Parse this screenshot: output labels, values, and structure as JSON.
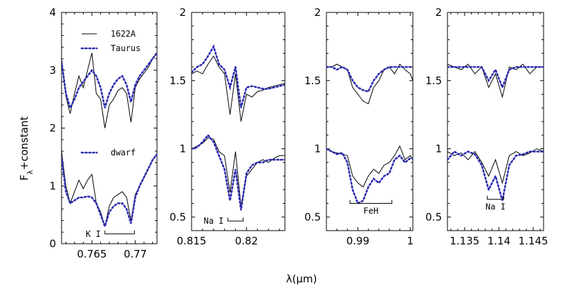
{
  "figure": {
    "ylabel_main": "F",
    "ylabel_sub": "λ",
    "ylabel_rest": "+constant",
    "xlabel": "λ(μm)"
  },
  "legend": {
    "items": [
      {
        "label": "1622A",
        "style": "solid"
      },
      {
        "label": "Taurus",
        "style": "dotted"
      },
      {
        "label": "dwarf",
        "style": "dotted"
      }
    ]
  },
  "colors": {
    "observed": "#000000",
    "template": "#2b2bb0"
  },
  "chart_data": [
    {
      "type": "line",
      "xlim": [
        0.7615,
        0.7725
      ],
      "ylim": [
        0,
        4
      ],
      "xticks": [
        0.765,
        0.77
      ],
      "xtick_labels": [
        "0.765",
        "0.77"
      ],
      "yticks": [
        0,
        1,
        2,
        3,
        4
      ],
      "ytick_labels": [
        "0",
        "1",
        "2",
        "3",
        "4"
      ],
      "annotation": {
        "label": "K I",
        "bracket": [
          0.7665,
          0.7699
        ],
        "y": 0.17
      },
      "series": [
        {
          "name": "1622A",
          "style": "solid",
          "x": [
            0.7615,
            0.762,
            0.7625,
            0.763,
            0.7635,
            0.764,
            0.7645,
            0.765,
            0.7655,
            0.766,
            0.7665,
            0.767,
            0.7675,
            0.768,
            0.7685,
            0.769,
            0.7695,
            0.77,
            0.7705,
            0.771,
            0.7715,
            0.772,
            0.7725
          ],
          "y": [
            3.2,
            2.55,
            2.25,
            2.6,
            2.9,
            2.7,
            3.0,
            3.3,
            2.6,
            2.5,
            2.0,
            2.4,
            2.5,
            2.65,
            2.7,
            2.6,
            2.1,
            2.7,
            2.85,
            2.95,
            3.05,
            3.2,
            3.3
          ]
        },
        {
          "name": "Taurus",
          "style": "dotted",
          "x": [
            0.7615,
            0.762,
            0.7625,
            0.763,
            0.7635,
            0.764,
            0.7645,
            0.765,
            0.7655,
            0.766,
            0.7665,
            0.767,
            0.7675,
            0.768,
            0.7685,
            0.769,
            0.7695,
            0.77,
            0.7705,
            0.771,
            0.7715,
            0.772,
            0.7725
          ],
          "y": [
            3.15,
            2.6,
            2.35,
            2.5,
            2.7,
            2.8,
            2.9,
            3.0,
            2.9,
            2.7,
            2.35,
            2.6,
            2.75,
            2.85,
            2.9,
            2.75,
            2.45,
            2.75,
            2.9,
            3.0,
            3.1,
            3.2,
            3.3
          ]
        },
        {
          "name": "1622A",
          "style": "solid",
          "x": [
            0.7615,
            0.762,
            0.7625,
            0.763,
            0.7635,
            0.764,
            0.7645,
            0.765,
            0.7655,
            0.766,
            0.7665,
            0.767,
            0.7675,
            0.768,
            0.7685,
            0.769,
            0.7695,
            0.77,
            0.7705,
            0.771,
            0.7715,
            0.772,
            0.7725
          ],
          "y": [
            1.6,
            1.0,
            0.7,
            0.9,
            1.1,
            0.95,
            1.1,
            1.2,
            0.7,
            0.55,
            0.3,
            0.65,
            0.8,
            0.85,
            0.9,
            0.8,
            0.4,
            0.85,
            1.0,
            1.15,
            1.3,
            1.45,
            1.55
          ]
        },
        {
          "name": "dwarf",
          "style": "dotted",
          "x": [
            0.7615,
            0.762,
            0.7625,
            0.763,
            0.7635,
            0.764,
            0.7645,
            0.765,
            0.7655,
            0.766,
            0.7665,
            0.767,
            0.7675,
            0.768,
            0.7685,
            0.769,
            0.7695,
            0.77,
            0.7705,
            0.771,
            0.7715,
            0.772,
            0.7725
          ],
          "y": [
            1.5,
            0.9,
            0.7,
            0.75,
            0.8,
            0.8,
            0.82,
            0.8,
            0.7,
            0.5,
            0.3,
            0.55,
            0.65,
            0.7,
            0.7,
            0.6,
            0.35,
            0.8,
            1.0,
            1.15,
            1.3,
            1.45,
            1.55
          ]
        }
      ]
    },
    {
      "type": "line",
      "xlim": [
        0.815,
        0.8235
      ],
      "ylim": [
        0.4,
        2
      ],
      "xticks": [
        0.815,
        0.82
      ],
      "xtick_labels": [
        "0.815",
        "0.82"
      ],
      "yticks": [
        0.5,
        1,
        1.5,
        2
      ],
      "ytick_labels": [
        "0.5",
        "1",
        "1.5",
        "2"
      ],
      "annotation": {
        "label": "Na I",
        "bracket": [
          0.8183,
          0.8197
        ],
        "y": 0.47
      },
      "series": [
        {
          "name": "1622A",
          "style": "solid",
          "x": [
            0.815,
            0.8155,
            0.816,
            0.8165,
            0.817,
            0.8175,
            0.818,
            0.8185,
            0.819,
            0.8195,
            0.82,
            0.8205,
            0.821,
            0.8215,
            0.822,
            0.8225,
            0.823,
            0.8235
          ],
          "y": [
            1.55,
            1.57,
            1.55,
            1.62,
            1.68,
            1.6,
            1.55,
            1.25,
            1.55,
            1.2,
            1.4,
            1.38,
            1.42,
            1.43,
            1.45,
            1.46,
            1.47,
            1.48
          ]
        },
        {
          "name": "Taurus",
          "style": "dotted",
          "x": [
            0.815,
            0.8155,
            0.816,
            0.8165,
            0.817,
            0.8175,
            0.818,
            0.8185,
            0.819,
            0.8195,
            0.82,
            0.8205,
            0.821,
            0.8215,
            0.822,
            0.8225,
            0.823,
            0.8235
          ],
          "y": [
            1.56,
            1.6,
            1.62,
            1.68,
            1.75,
            1.62,
            1.58,
            1.45,
            1.6,
            1.3,
            1.45,
            1.46,
            1.45,
            1.44,
            1.44,
            1.45,
            1.46,
            1.47
          ]
        },
        {
          "name": "1622A",
          "style": "solid",
          "x": [
            0.815,
            0.8155,
            0.816,
            0.8165,
            0.817,
            0.8175,
            0.818,
            0.8185,
            0.819,
            0.8195,
            0.82,
            0.8205,
            0.821,
            0.8215,
            0.822,
            0.8225,
            0.823,
            0.8235
          ],
          "y": [
            1.0,
            1.02,
            1.04,
            1.08,
            1.07,
            0.98,
            0.95,
            0.68,
            0.98,
            0.58,
            0.8,
            0.85,
            0.9,
            0.92,
            0.9,
            0.93,
            0.95,
            0.95
          ]
        },
        {
          "name": "dwarf",
          "style": "dotted",
          "x": [
            0.815,
            0.8155,
            0.816,
            0.8165,
            0.817,
            0.8175,
            0.818,
            0.8185,
            0.819,
            0.8195,
            0.82,
            0.8205,
            0.821,
            0.8215,
            0.822,
            0.8225,
            0.823,
            0.8235
          ],
          "y": [
            1.0,
            1.01,
            1.05,
            1.1,
            1.05,
            0.95,
            0.85,
            0.62,
            0.85,
            0.55,
            0.82,
            0.88,
            0.9,
            0.9,
            0.92,
            0.92,
            0.92,
            0.92
          ]
        }
      ]
    },
    {
      "type": "line",
      "xlim": [
        0.984,
        1.0005
      ],
      "ylim": [
        0.4,
        2
      ],
      "xticks": [
        0.99,
        1.0
      ],
      "xtick_labels": [
        "0.99",
        "1"
      ],
      "yticks": [
        0.5,
        1,
        1.5,
        2
      ],
      "ytick_labels": [
        "0.5",
        "1",
        "1.5",
        "2"
      ],
      "annotation": {
        "label": "FeH",
        "bracket": [
          0.9885,
          0.9965
        ],
        "y": 0.6
      },
      "series": [
        {
          "name": "1622A",
          "style": "solid",
          "x": [
            0.984,
            0.985,
            0.986,
            0.987,
            0.988,
            0.989,
            0.99,
            0.991,
            0.992,
            0.993,
            0.994,
            0.995,
            0.996,
            0.997,
            0.998,
            0.999,
            1.0,
            1.0005
          ],
          "y": [
            1.6,
            1.6,
            1.62,
            1.6,
            1.58,
            1.45,
            1.4,
            1.35,
            1.33,
            1.45,
            1.5,
            1.58,
            1.6,
            1.55,
            1.62,
            1.58,
            1.55,
            1.5
          ]
        },
        {
          "name": "Taurus",
          "style": "dotted",
          "x": [
            0.984,
            0.985,
            0.986,
            0.987,
            0.988,
            0.989,
            0.99,
            0.991,
            0.992,
            0.993,
            0.994,
            0.995,
            0.996,
            0.997,
            0.998,
            0.999,
            1.0,
            1.0005
          ],
          "y": [
            1.6,
            1.6,
            1.58,
            1.6,
            1.58,
            1.5,
            1.45,
            1.43,
            1.42,
            1.5,
            1.55,
            1.58,
            1.6,
            1.6,
            1.6,
            1.6,
            1.6,
            1.6
          ]
        },
        {
          "name": "1622A",
          "style": "solid",
          "x": [
            0.984,
            0.985,
            0.986,
            0.987,
            0.988,
            0.989,
            0.99,
            0.991,
            0.992,
            0.993,
            0.994,
            0.995,
            0.996,
            0.997,
            0.998,
            0.999,
            1.0,
            1.0005
          ],
          "y": [
            1.0,
            0.98,
            0.97,
            0.96,
            0.95,
            0.8,
            0.75,
            0.72,
            0.8,
            0.85,
            0.82,
            0.88,
            0.9,
            0.95,
            1.02,
            0.92,
            0.95,
            0.92
          ]
        },
        {
          "name": "dwarf",
          "style": "dotted",
          "x": [
            0.984,
            0.985,
            0.986,
            0.987,
            0.988,
            0.989,
            0.99,
            0.991,
            0.992,
            0.993,
            0.994,
            0.995,
            0.996,
            0.997,
            0.998,
            0.999,
            1.0,
            1.0005
          ],
          "y": [
            1.0,
            0.98,
            0.96,
            0.97,
            0.9,
            0.7,
            0.6,
            0.62,
            0.72,
            0.78,
            0.75,
            0.8,
            0.82,
            0.92,
            0.95,
            0.9,
            0.93,
            0.93
          ]
        }
      ]
    },
    {
      "type": "line",
      "xlim": [
        1.1325,
        1.1465
      ],
      "ylim": [
        0.4,
        2
      ],
      "xticks": [
        1.135,
        1.14,
        1.145
      ],
      "xtick_labels": [
        "1.135",
        "1.14",
        "1.145"
      ],
      "yticks": [
        0.5,
        1,
        1.5,
        2
      ],
      "ytick_labels": [
        "0.5",
        "1",
        "1.5",
        "2"
      ],
      "annotation": {
        "label": "Na I",
        "bracket": [
          1.1383,
          1.1407
        ],
        "y": 0.63
      },
      "series": [
        {
          "name": "1622A",
          "style": "solid",
          "x": [
            1.1325,
            1.1335,
            1.1345,
            1.1355,
            1.1365,
            1.1375,
            1.1385,
            1.1395,
            1.1405,
            1.1415,
            1.1425,
            1.1435,
            1.1445,
            1.1455,
            1.1465
          ],
          "y": [
            1.62,
            1.6,
            1.58,
            1.62,
            1.55,
            1.6,
            1.45,
            1.55,
            1.38,
            1.6,
            1.58,
            1.62,
            1.55,
            1.6,
            1.6
          ]
        },
        {
          "name": "Taurus",
          "style": "dotted",
          "x": [
            1.1325,
            1.1335,
            1.1345,
            1.1355,
            1.1365,
            1.1375,
            1.1385,
            1.1395,
            1.1405,
            1.1415,
            1.1425,
            1.1435,
            1.1445,
            1.1455,
            1.1465
          ],
          "y": [
            1.6,
            1.6,
            1.6,
            1.6,
            1.6,
            1.6,
            1.5,
            1.58,
            1.45,
            1.58,
            1.6,
            1.6,
            1.6,
            1.6,
            1.6
          ]
        },
        {
          "name": "1622A",
          "style": "solid",
          "x": [
            1.1325,
            1.1335,
            1.1345,
            1.1355,
            1.1365,
            1.1375,
            1.1385,
            1.1395,
            1.1405,
            1.1415,
            1.1425,
            1.1435,
            1.1445,
            1.1455,
            1.1465
          ],
          "y": [
            0.98,
            0.95,
            0.97,
            0.92,
            0.98,
            0.9,
            0.8,
            0.92,
            0.75,
            0.95,
            0.98,
            0.95,
            0.97,
            1.0,
            0.98
          ]
        },
        {
          "name": "dwarf",
          "style": "dotted",
          "x": [
            1.1325,
            1.1335,
            1.1345,
            1.1355,
            1.1365,
            1.1375,
            1.1385,
            1.1395,
            1.1405,
            1.1415,
            1.1425,
            1.1435,
            1.1445,
            1.1455,
            1.1465
          ],
          "y": [
            0.92,
            0.98,
            0.95,
            0.98,
            0.96,
            0.88,
            0.7,
            0.8,
            0.62,
            0.88,
            0.95,
            0.96,
            0.98,
            0.98,
            0.98
          ]
        }
      ]
    }
  ]
}
